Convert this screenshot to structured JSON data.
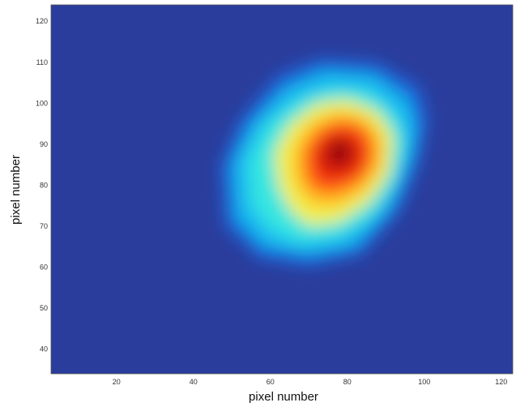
{
  "chart_data": {
    "type": "heatmap",
    "title": "",
    "xlabel": "pixel number",
    "ylabel": "pixel number",
    "xlim": [
      3,
      123
    ],
    "ylim": [
      34,
      124
    ],
    "x_ticks": [
      20,
      40,
      60,
      80,
      100,
      120
    ],
    "y_ticks": [
      40,
      50,
      60,
      70,
      80,
      90,
      100,
      110,
      120
    ],
    "colormap": "jet",
    "colormap_stops": [
      "#00008f",
      "#0000ff",
      "#00ffff",
      "#ffff00",
      "#ff0000",
      "#800000"
    ],
    "background_color": "#2b3d9c",
    "peak_center": [
      77,
      88
    ],
    "grid": false,
    "legend": "none"
  }
}
